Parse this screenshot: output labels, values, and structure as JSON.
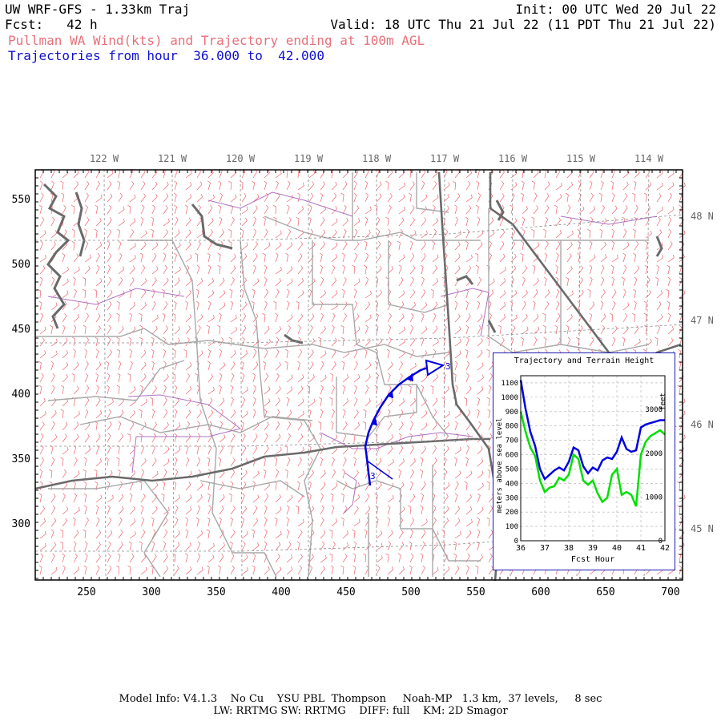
{
  "header": {
    "model": "UW WRF-GFS - 1.33km Traj",
    "init": "Init: 00 UTC Wed 20 Jul 22",
    "fcst": "Fcst:   42 h",
    "valid": "Valid: 18 UTC Thu 21 Jul 22 (11 PDT Thu 21 Jul 22)",
    "subtitle": "Pullman WA Wind(kts) and Trajectory ending at 100m AGL",
    "traj_range": "Trajectories from hour  36.000 to  42.000"
  },
  "map": {
    "lon_labels": [
      "122 W",
      "121 W",
      "120 W",
      "119 W",
      "118 W",
      "117 W",
      "116 W",
      "115 W",
      "114 W"
    ],
    "lat_labels": [
      "48 N",
      "47 N",
      "46 N",
      "45 N"
    ],
    "x_ticks": [
      "250",
      "300",
      "350",
      "400",
      "450",
      "500",
      "550",
      "600",
      "650",
      "700"
    ],
    "y_ticks": [
      "550",
      "500",
      "450",
      "400",
      "350",
      "300"
    ],
    "traj_label_start": "3",
    "traj_label_end": "3",
    "colors": {
      "barbs": "#e8303c",
      "counties": "#a8a8a8",
      "states": "#6a6a6a",
      "rivers": "#b070c0",
      "trajectory": "#0000e0"
    }
  },
  "inset": {
    "title": "Trajectory and Terrain Height",
    "ylabel": "meters above sea level",
    "xlabel": "Fcst Hour",
    "ylabel_right": "feet",
    "left_ticks": [
      "1100",
      "1000",
      "900",
      "800",
      "700",
      "600",
      "500",
      "400",
      "300",
      "200",
      "100",
      "0"
    ],
    "right_ticks": [
      "3000",
      "2000",
      "1000",
      "0"
    ],
    "x_ticks": [
      "36",
      "37",
      "38",
      "39",
      "40",
      "41",
      "42"
    ]
  },
  "chart_data": {
    "type": "line",
    "title": "Trajectory and Terrain Height",
    "xlabel": "Fcst Hour",
    "ylabel": "meters above sea level",
    "xlim": [
      36,
      42
    ],
    "ylim": [
      0,
      1150
    ],
    "grid": true,
    "x": [
      36.0,
      36.2,
      36.4,
      36.6,
      36.8,
      37.0,
      37.2,
      37.4,
      37.6,
      37.8,
      38.0,
      38.2,
      38.4,
      38.6,
      38.8,
      39.0,
      39.2,
      39.4,
      39.6,
      39.8,
      40.0,
      40.2,
      40.4,
      40.6,
      40.8,
      41.0,
      41.2,
      41.4,
      41.6,
      41.8,
      42.0
    ],
    "series": [
      {
        "color": "#0000e0",
        "values": [
          1120,
          920,
          760,
          660,
          500,
          430,
          460,
          490,
          510,
          490,
          550,
          650,
          630,
          520,
          470,
          510,
          490,
          560,
          580,
          570,
          620,
          720,
          640,
          620,
          630,
          790,
          810,
          820,
          830,
          840,
          840
        ]
      },
      {
        "color": "#00e000",
        "values": [
          900,
          760,
          650,
          590,
          420,
          340,
          370,
          380,
          440,
          420,
          460,
          600,
          570,
          420,
          390,
          420,
          330,
          270,
          300,
          460,
          500,
          320,
          340,
          320,
          240,
          600,
          690,
          730,
          750,
          770,
          740
        ]
      }
    ]
  }
}
